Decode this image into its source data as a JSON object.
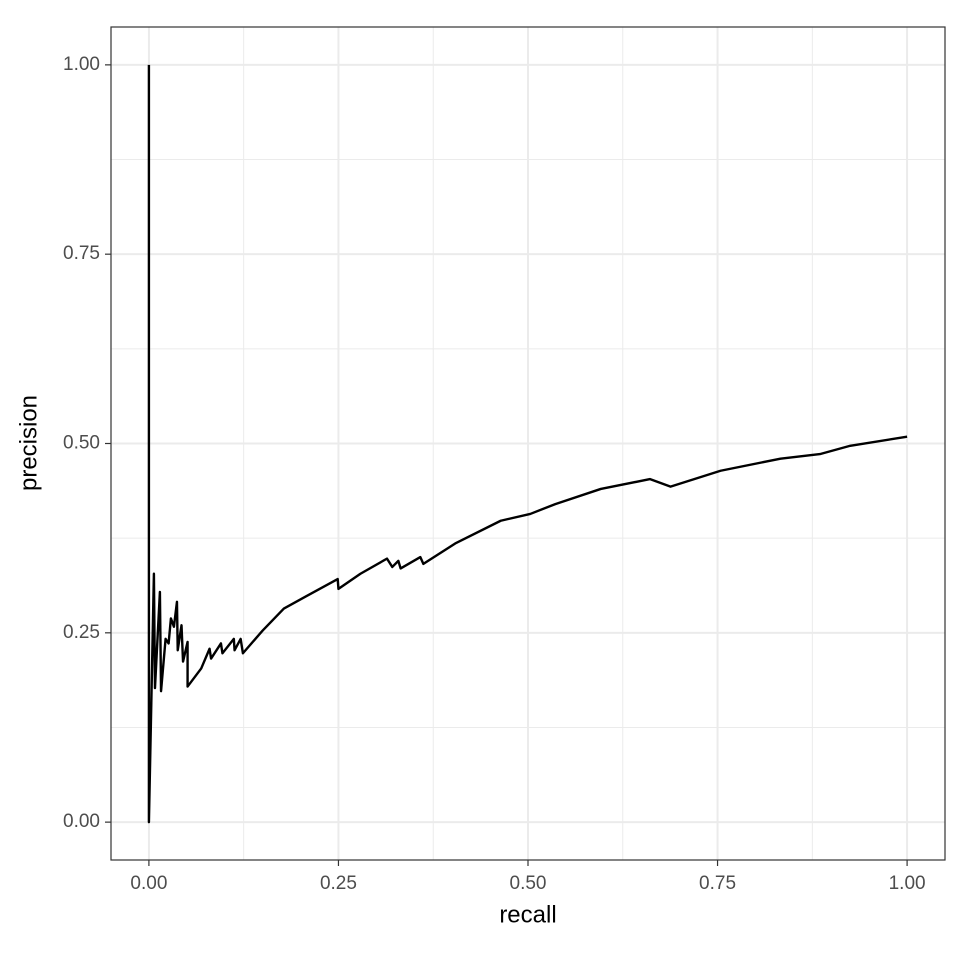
{
  "chart_data": {
    "type": "line",
    "x_label": "recall",
    "y_label": "precision",
    "xlim": [
      -0.05,
      1.05
    ],
    "ylim": [
      -0.05,
      1.05
    ],
    "xticks": [
      {
        "value": 0,
        "label": "0.00"
      },
      {
        "value": 0.25,
        "label": "0.25"
      },
      {
        "value": 0.5,
        "label": "0.50"
      },
      {
        "value": 0.75,
        "label": "0.75"
      },
      {
        "value": 1,
        "label": "1.00"
      }
    ],
    "yticks": [
      {
        "value": 0,
        "label": "0.00"
      },
      {
        "value": 0.25,
        "label": "0.25"
      },
      {
        "value": 0.5,
        "label": "0.50"
      },
      {
        "value": 0.75,
        "label": "0.75"
      },
      {
        "value": 1,
        "label": "1.00"
      }
    ],
    "minor_xticks": [
      0.125,
      0.375,
      0.625,
      0.875
    ],
    "minor_yticks": [
      0.125,
      0.375,
      0.625,
      0.875
    ],
    "grid": true,
    "color": "#000000",
    "x": [
      0,
      0,
      0.0066,
      0.008,
      0.0145,
      0.016,
      0.022,
      0.026,
      0.029,
      0.033,
      0.037,
      0.038,
      0.043,
      0.045,
      0.051,
      0.051,
      0.069,
      0.08,
      0.082,
      0.095,
      0.097,
      0.112,
      0.113,
      0.121,
      0.124,
      0.15,
      0.178,
      0.207,
      0.249,
      0.25,
      0.279,
      0.314,
      0.321,
      0.329,
      0.332,
      0.358,
      0.362,
      0.404,
      0.464,
      0.503,
      0.536,
      0.596,
      0.661,
      0.688,
      0.754,
      0.833,
      0.885,
      0.925,
      1.0
    ],
    "values": [
      1.0,
      0,
      0.328,
      0.177,
      0.304,
      0.173,
      0.242,
      0.236,
      0.269,
      0.258,
      0.291,
      0.227,
      0.26,
      0.212,
      0.238,
      0.179,
      0.203,
      0.229,
      0.216,
      0.236,
      0.223,
      0.242,
      0.227,
      0.242,
      0.223,
      0.253,
      0.282,
      0.298,
      0.321,
      0.308,
      0.328,
      0.348,
      0.337,
      0.345,
      0.335,
      0.35,
      0.341,
      0.368,
      0.398,
      0.407,
      0.42,
      0.44,
      0.453,
      0.443,
      0.464,
      0.48,
      0.486,
      0.497,
      0.509
    ]
  }
}
